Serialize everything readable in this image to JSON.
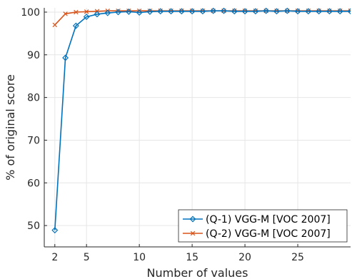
{
  "chart_data": {
    "type": "line",
    "xlabel": "Number of values",
    "ylabel": "% of original score",
    "xlim": [
      1,
      30
    ],
    "ylim": [
      45,
      101
    ],
    "xticks": [
      2,
      5,
      10,
      15,
      20,
      25
    ],
    "yticks": [
      50,
      60,
      70,
      80,
      90,
      100
    ],
    "grid": true,
    "legend_position": "bottom-right",
    "series": [
      {
        "name": "(Q-1) VGG-M [VOC 2007]",
        "color": "#0072BD",
        "marker": "diamond",
        "x": [
          2,
          3,
          4,
          5,
          6,
          7,
          8,
          9,
          10,
          11,
          12,
          13,
          14,
          15,
          16,
          17,
          18,
          19,
          20,
          21,
          22,
          23,
          24,
          25,
          26,
          27,
          28,
          29,
          30
        ],
        "y": [
          48.9,
          89.3,
          96.8,
          98.9,
          99.5,
          99.8,
          100.0,
          100.1,
          99.9,
          100.1,
          100.2,
          100.2,
          100.2,
          100.2,
          100.2,
          100.3,
          100.3,
          100.2,
          100.2,
          100.2,
          100.3,
          100.2,
          100.3,
          100.2,
          100.2,
          100.2,
          100.2,
          100.2,
          100.2
        ]
      },
      {
        "name": "(Q-2) VGG-M [VOC 2007]",
        "color": "#D95319",
        "marker": "x",
        "x": [
          2,
          3,
          4,
          5,
          6,
          7,
          8,
          9,
          10,
          11,
          12,
          13,
          14,
          15,
          16,
          17,
          18,
          19,
          20,
          21,
          22,
          23,
          24,
          25,
          26,
          27,
          28,
          29,
          30
        ],
        "y": [
          97.0,
          99.6,
          100.0,
          100.1,
          100.2,
          100.3,
          100.3,
          100.3,
          100.3,
          100.3,
          100.3,
          100.3,
          100.3,
          100.3,
          100.3,
          100.3,
          100.3,
          100.3,
          100.3,
          100.3,
          100.3,
          100.3,
          100.3,
          100.3,
          100.3,
          100.3,
          100.3,
          100.3,
          100.3
        ]
      }
    ]
  }
}
